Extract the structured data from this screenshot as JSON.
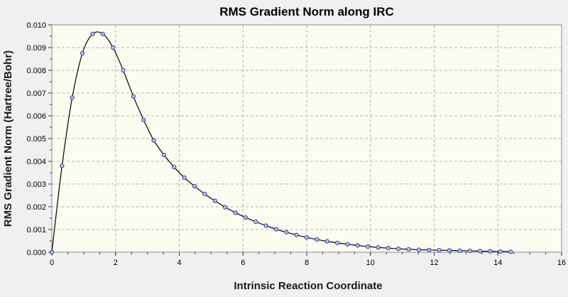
{
  "colors": {
    "window_bg": "#f0f0f0",
    "plot_bg": "#fbfbf0",
    "grid": "#b4b4b4",
    "line": "#000000",
    "marker_fill": "#b8c4f0",
    "marker_stroke": "#2b3fa8"
  },
  "chart_data": {
    "type": "line",
    "title": "RMS Gradient Norm along IRC",
    "xlabel": "Intrinsic Reaction Coordinate",
    "ylabel": "RMS Gradient Norm (Hartree/Bohr)",
    "xlim": [
      0,
      16
    ],
    "ylim": [
      0,
      0.01
    ],
    "x_ticks": [
      0,
      2,
      4,
      6,
      8,
      10,
      12,
      14,
      16
    ],
    "x_tick_labels": [
      "0",
      "2",
      "4",
      "6",
      "8",
      "10",
      "12",
      "14",
      "16"
    ],
    "y_ticks": [
      0,
      0.001,
      0.002,
      0.003,
      0.004,
      0.005,
      0.006,
      0.007,
      0.008,
      0.009,
      0.01
    ],
    "y_tick_labels": [
      "0.000",
      "0.001",
      "0.002",
      "0.003",
      "0.004",
      "0.005",
      "0.006",
      "0.007",
      "0.008",
      "0.009",
      "0.010"
    ],
    "grid": true,
    "series": [
      {
        "x": [
          0,
          0.32,
          0.64,
          0.96,
          1.28,
          1.6,
          1.92,
          2.24,
          2.56,
          2.88,
          3.2,
          3.52,
          3.84,
          4.16,
          4.48,
          4.8,
          5.12,
          5.44,
          5.76,
          6.08,
          6.4,
          6.72,
          7.04,
          7.36,
          7.68,
          8.0,
          8.32,
          8.64,
          8.96,
          9.28,
          9.6,
          9.92,
          10.24,
          10.56,
          10.88,
          11.2,
          11.52,
          11.84,
          12.16,
          12.48,
          12.8,
          13.12,
          13.44,
          13.76,
          14.08,
          14.4
        ],
        "y": [
          0.0,
          0.0038,
          0.0068,
          0.00875,
          0.0096,
          0.0096,
          0.009,
          0.008,
          0.00685,
          0.00582,
          0.00492,
          0.00428,
          0.00374,
          0.00328,
          0.0029,
          0.00256,
          0.00226,
          0.00198,
          0.00174,
          0.00153,
          0.00134,
          0.00117,
          0.00101,
          0.00088,
          0.00076,
          0.00065,
          0.00056,
          0.00048,
          0.00041,
          0.00035,
          0.0003,
          0.00025,
          0.00021,
          0.00018,
          0.00015,
          0.00013,
          0.00011,
          0.0001,
          9e-05,
          8e-05,
          7e-05,
          6e-05,
          5e-05,
          4e-05,
          3e-05,
          2e-05
        ]
      }
    ]
  }
}
